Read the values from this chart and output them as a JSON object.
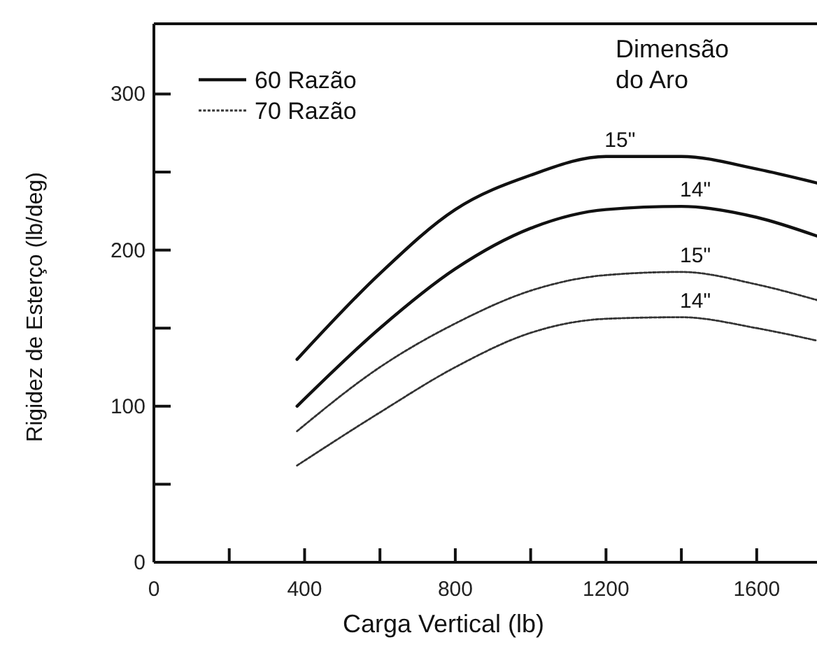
{
  "chart_data": {
    "type": "line",
    "xlabel": "Carga Vertical (lb)",
    "ylabel": "Rigidez de Esterço (lb/deg)",
    "x": [
      380,
      600,
      800,
      1000,
      1200,
      1400,
      1600,
      1760
    ],
    "series": [
      {
        "name": "60 Razão",
        "color": "#111111",
        "line_style": "solid",
        "values": [
          130,
          185,
          226,
          248,
          260,
          260,
          252,
          243
        ]
      },
      {
        "color": "#111111",
        "line_style": "solid",
        "values": [
          100,
          150,
          188,
          214,
          226,
          228,
          221,
          209
        ]
      },
      {
        "name": "70 Razão",
        "color": "#333333",
        "line_style": "dotted",
        "values": [
          84,
          125,
          153,
          174,
          184,
          186,
          178,
          168
        ]
      },
      {
        "color": "#333333",
        "line_style": "dotted",
        "values": [
          62,
          96,
          125,
          147,
          156,
          157,
          150,
          142
        ]
      }
    ],
    "xlim": [
      0,
      1760
    ],
    "ylim": [
      0,
      345
    ],
    "xticks": [
      0,
      {
        "value": 200,
        "label": null
      },
      400,
      {
        "value": 600,
        "label": null
      },
      800,
      {
        "value": 1000,
        "label": null
      },
      1200,
      {
        "value": 1400,
        "label": null
      },
      1600
    ],
    "yticks": [
      0,
      {
        "value": 50,
        "label": null
      },
      100,
      {
        "value": 150,
        "label": null
      },
      200,
      {
        "value": 250,
        "label": null
      },
      300
    ],
    "annotations": [
      "Dimensão\ndo Aro",
      "15\"",
      "14\"",
      "15\"",
      "14\""
    ],
    "legend": "top left",
    "grid": false,
    "marker": "none"
  }
}
